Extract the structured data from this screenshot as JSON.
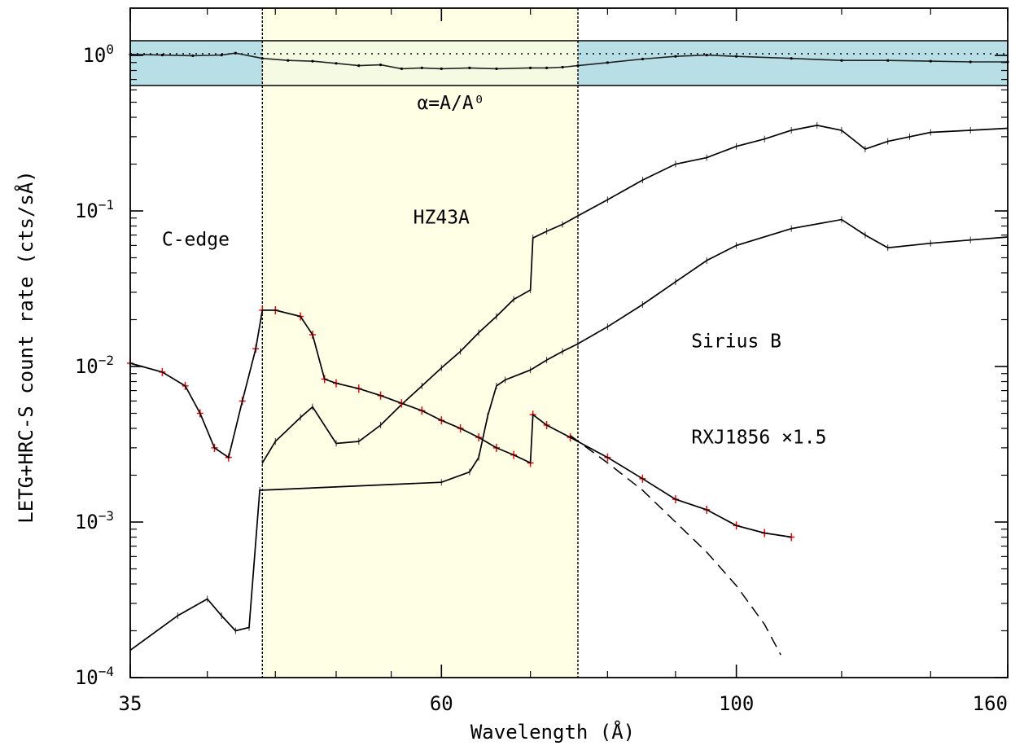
{
  "chart_data": {
    "type": "line",
    "xlabel": "Wavelength (Å)",
    "ylabel": "LETG+HRC-S count rate (cts/sÅ)",
    "x_scale": "log",
    "y_scale": "log",
    "xlim": [
      35,
      160
    ],
    "ylim": [
      0.0001,
      1.0
    ],
    "x_ticks": [
      {
        "value": 35,
        "label": "35"
      },
      {
        "value": 60,
        "label": "60"
      },
      {
        "value": 100,
        "label": "100"
      },
      {
        "value": 160,
        "label": "160"
      }
    ],
    "y_ticks": [
      {
        "value": 0.0001,
        "base": "10",
        "exp": "−4"
      },
      {
        "value": 0.001,
        "base": "10",
        "exp": "−3"
      },
      {
        "value": 0.01,
        "base": "10",
        "exp": "−2"
      },
      {
        "value": 0.1,
        "base": "10",
        "exp": "−1"
      },
      {
        "value": 1.0,
        "base": "10",
        "exp": "0"
      }
    ],
    "highlight_band": {
      "x_from": 44,
      "x_to": 76,
      "color": "#ffffe0"
    },
    "ratio_panel": {
      "label": "α=A/A⁰",
      "band_color": "#b8dfe6",
      "reference_level": 1.0,
      "x": [
        35,
        37,
        39,
        41,
        42,
        44,
        46,
        48,
        50,
        52,
        54,
        56,
        58,
        60,
        63,
        66,
        70,
        72,
        74,
        76,
        80,
        85,
        90,
        95,
        100,
        110,
        120,
        130,
        140,
        150,
        160
      ],
      "y": [
        0.99,
        0.98,
        0.97,
        0.98,
        1.01,
        0.93,
        0.9,
        0.89,
        0.86,
        0.83,
        0.84,
        0.79,
        0.8,
        0.79,
        0.8,
        0.79,
        0.8,
        0.8,
        0.81,
        0.83,
        0.87,
        0.92,
        0.96,
        0.98,
        0.96,
        0.93,
        0.9,
        0.9,
        0.89,
        0.88,
        0.88
      ]
    },
    "annotations": [
      {
        "text": "C-edge",
        "x": 39.2,
        "y": 0.06
      },
      {
        "text": "HZ43A",
        "x": 60,
        "y": 0.083
      },
      {
        "text": "Sirius B",
        "x": 100,
        "y": 0.0133
      },
      {
        "text": "RXJ1856 ×1.5",
        "x": 104,
        "y": 0.0032
      }
    ],
    "series": [
      {
        "name": "HZ43A",
        "color": "#000000",
        "x": [
          44,
          45,
          47,
          48,
          50,
          52,
          54,
          56,
          58,
          60,
          62,
          64,
          66,
          68,
          70,
          70.3,
          72,
          74,
          76,
          80,
          85,
          90,
          95,
          100,
          105,
          110,
          115,
          120,
          125,
          130,
          135,
          140,
          150,
          160
        ],
        "y": [
          0.0024,
          0.0033,
          0.0047,
          0.0055,
          0.0032,
          0.0033,
          0.0042,
          0.0057,
          0.0075,
          0.0098,
          0.0125,
          0.0165,
          0.021,
          0.027,
          0.031,
          0.067,
          0.074,
          0.082,
          0.093,
          0.118,
          0.158,
          0.2,
          0.22,
          0.26,
          0.29,
          0.33,
          0.355,
          0.33,
          0.25,
          0.28,
          0.3,
          0.32,
          0.33,
          0.34
        ]
      },
      {
        "name": "Sirius B",
        "color": "#000000",
        "x": [
          35,
          38,
          40,
          41,
          42,
          43,
          43.8,
          60,
          63,
          64,
          65,
          66,
          67,
          70,
          72,
          74,
          76,
          80,
          85,
          90,
          95,
          100,
          110,
          120,
          125,
          130,
          140,
          150,
          160
        ],
        "y": [
          0.00015,
          0.00025,
          0.00032,
          0.00025,
          0.0002,
          0.00021,
          0.0016,
          0.0018,
          0.0021,
          0.0026,
          0.0048,
          0.0075,
          0.0082,
          0.0095,
          0.011,
          0.0125,
          0.014,
          0.018,
          0.025,
          0.035,
          0.048,
          0.06,
          0.077,
          0.088,
          0.07,
          0.058,
          0.062,
          0.065,
          0.068
        ]
      },
      {
        "name": "RXJ1856 ×1.5",
        "color": "#000000",
        "data_color": "#ff0000",
        "x": [
          35,
          37,
          38.5,
          39.5,
          40.5,
          41.5,
          42.5,
          43.5,
          44,
          45,
          47,
          48,
          49,
          50,
          52,
          54,
          56,
          58,
          60,
          62,
          64,
          66,
          68,
          70,
          70.3,
          72,
          75,
          80,
          85,
          90,
          95,
          100,
          105,
          110
        ],
        "y": [
          0.0105,
          0.0092,
          0.0075,
          0.005,
          0.003,
          0.0026,
          0.006,
          0.013,
          0.023,
          0.023,
          0.021,
          0.016,
          0.0083,
          0.0078,
          0.0072,
          0.0065,
          0.0058,
          0.0052,
          0.0045,
          0.004,
          0.0035,
          0.003,
          0.0027,
          0.0024,
          0.0049,
          0.0042,
          0.0035,
          0.0026,
          0.0019,
          0.0014,
          0.0012,
          0.00095,
          0.00085,
          0.0008
        ]
      }
    ],
    "model_extrapolation": {
      "style": "dashed",
      "x": [
        75,
        80,
        85,
        90,
        95,
        100,
        105,
        108
      ],
      "y": [
        0.0036,
        0.0024,
        0.0016,
        0.001,
        0.00064,
        0.00039,
        0.00022,
        0.00014
      ]
    }
  }
}
